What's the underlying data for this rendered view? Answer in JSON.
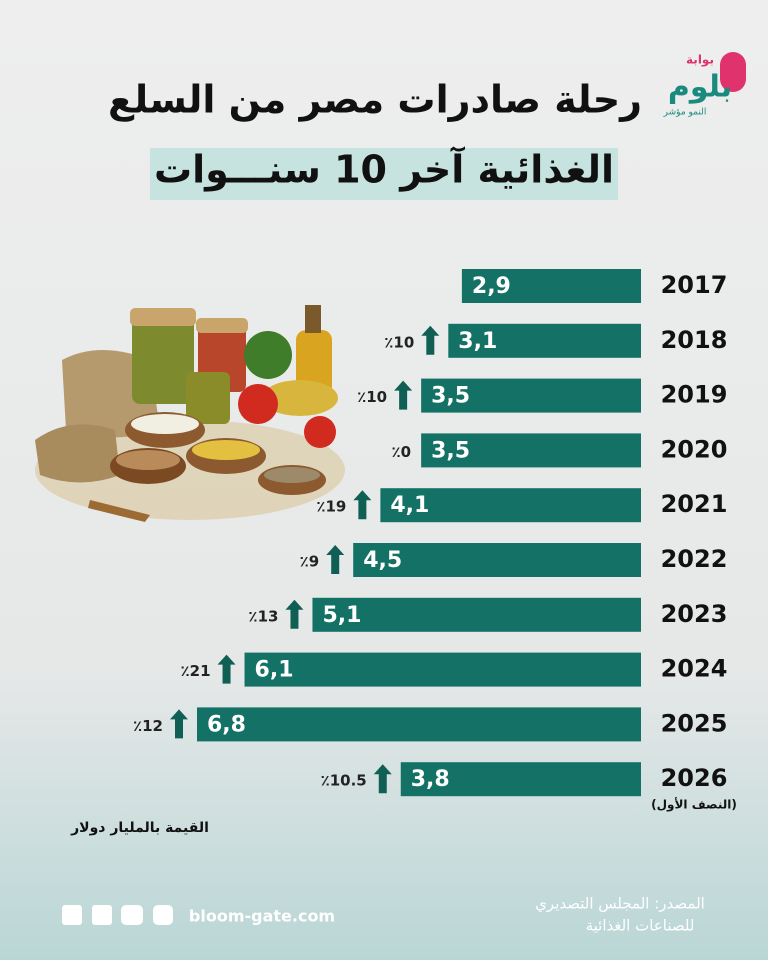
{
  "header": {
    "logo_top": "بوابة",
    "logo": "بلوم",
    "logo_tagline": "النمو مؤشر"
  },
  "chart_data": {
    "type": "bar",
    "orientation": "horizontal",
    "title": "رحلة صادرات مصر من السلع",
    "subtitle": "الغذائية آخر 10 سنـــوات",
    "categories": [
      "2017",
      "2018",
      "2019",
      "2020",
      "2021",
      "2022",
      "2023",
      "2024",
      "2025",
      "2026"
    ],
    "values": [
      2.9,
      3.1,
      3.5,
      3.5,
      4.1,
      4.5,
      5.1,
      6.1,
      6.8,
      3.8
    ],
    "value_labels": [
      "2,9",
      "3,1",
      "3,5",
      "3,5",
      "4,1",
      "4,5",
      "5,1",
      "6,1",
      "6,8",
      "3,8"
    ],
    "growth": [
      null,
      10,
      10,
      0,
      19,
      9,
      13,
      21,
      12,
      10.5
    ],
    "growth_labels": [
      null,
      "٪10",
      "٪10",
      "٪0",
      "٪19",
      "٪9",
      "٪13",
      "٪21",
      "٪12",
      "٪10.5"
    ],
    "category_note": "(النصف الأول)",
    "unit_note": "القيمة بالمليار دولار",
    "xlim": [
      1.75,
      6.8
    ],
    "color": "#147165",
    "arrow_color": "#0f5f55"
  },
  "footer": {
    "source": [
      "المصدر: المجلس التصديري",
      "للصناعات الغذائية"
    ],
    "website": "bloom-gate.com"
  }
}
